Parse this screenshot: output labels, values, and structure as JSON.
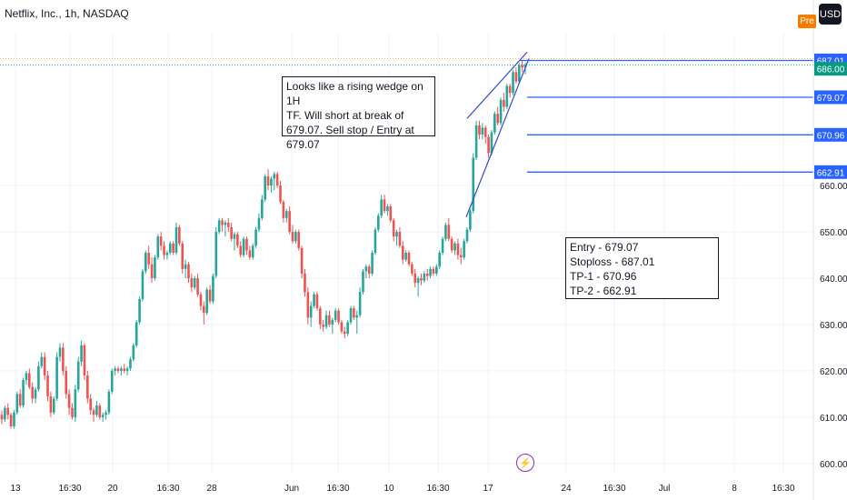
{
  "header": {
    "title": "Netflix, Inc., 1h, NASDAQ",
    "usd_label": "USD",
    "pre_label": "Pre"
  },
  "notes": {
    "wedge": "Looks like a rising wedge on 1H\nTF. Will short at break of\n679.07. Sell stop / Entry at\n679.07",
    "plan": "Entry - 679.07\nStoploss - 687.01\nTP-1 - 670.96\nTP-2 - 662.91"
  },
  "colors": {
    "up": "#26a69a",
    "down": "#ef5350",
    "level": "#2962ff",
    "line": "#2f4bd6",
    "price_tag": "#089981"
  },
  "chart_data": {
    "type": "candlestick",
    "title": "Netflix, Inc., 1h, NASDAQ",
    "ylim": [
      598,
      693
    ],
    "y_ticks": [
      600,
      610,
      620,
      630,
      640,
      650,
      660
    ],
    "x_tick_labels": [
      "13",
      "16:30",
      "20",
      "16:30",
      "28",
      "Jun",
      "16:30",
      "10",
      "16:30",
      "17",
      "24",
      "16:30",
      "Jul",
      "8",
      "16:30"
    ],
    "candles": [
      [
        610.5,
        611.5,
        608.5,
        609.5
      ],
      [
        609.5,
        612.5,
        609.0,
        612.0
      ],
      [
        612.0,
        613.0,
        609.5,
        610.5
      ],
      [
        610.5,
        611.0,
        607.5,
        608.0
      ],
      [
        608.0,
        611.5,
        607.5,
        611.0
      ],
      [
        611.0,
        615.5,
        610.5,
        615.0
      ],
      [
        615.0,
        616.0,
        612.0,
        612.5
      ],
      [
        612.5,
        618.5,
        612.0,
        618.0
      ],
      [
        618.0,
        620.0,
        617.0,
        619.5
      ],
      [
        619.5,
        620.5,
        616.0,
        616.5
      ],
      [
        616.5,
        617.5,
        613.0,
        614.0
      ],
      [
        614.0,
        616.5,
        613.0,
        616.0
      ],
      [
        616.0,
        622.0,
        615.5,
        621.0
      ],
      [
        621.0,
        624.0,
        620.5,
        623.0
      ],
      [
        623.0,
        624.0,
        618.0,
        619.0
      ],
      [
        619.0,
        620.0,
        613.5,
        614.5
      ],
      [
        614.5,
        615.5,
        610.0,
        611.0
      ],
      [
        611.0,
        614.5,
        610.5,
        614.0
      ],
      [
        614.0,
        624.0,
        613.5,
        623.0
      ],
      [
        623.0,
        626.0,
        622.0,
        625.0
      ],
      [
        625.0,
        626.0,
        619.0,
        620.0
      ],
      [
        620.0,
        621.0,
        614.0,
        615.0
      ],
      [
        615.0,
        616.0,
        610.5,
        612.0
      ],
      [
        612.0,
        613.0,
        609.5,
        610.0
      ],
      [
        610.0,
        617.0,
        609.0,
        616.0
      ],
      [
        616.0,
        623.0,
        615.5,
        622.0
      ],
      [
        622.0,
        626.5,
        621.0,
        625.5
      ],
      [
        625.5,
        626.0,
        618.0,
        619.0
      ],
      [
        619.0,
        620.0,
        613.0,
        614.0
      ],
      [
        614.0,
        615.0,
        610.5,
        611.5
      ],
      [
        611.5,
        612.0,
        609.0,
        610.5
      ],
      [
        610.5,
        613.5,
        610.0,
        612.5
      ],
      [
        612.5,
        613.0,
        609.5,
        610.0
      ],
      [
        610.0,
        611.0,
        609.0,
        610.5
      ],
      [
        610.5,
        611.5,
        609.5,
        611.0
      ],
      [
        611.0,
        616.0,
        610.5,
        615.5
      ],
      [
        615.5,
        620.5,
        615.0,
        620.0
      ],
      [
        620.0,
        621.0,
        619.0,
        620.5
      ],
      [
        620.5,
        621.0,
        619.5,
        620.0
      ],
      [
        620.0,
        621.0,
        619.0,
        620.5
      ],
      [
        620.5,
        621.5,
        619.5,
        620.0
      ],
      [
        620.0,
        621.0,
        619.0,
        620.5
      ],
      [
        620.5,
        623.0,
        620.0,
        622.5
      ],
      [
        622.5,
        626.0,
        622.0,
        625.5
      ],
      [
        625.5,
        631.0,
        625.0,
        630.5
      ],
      [
        630.5,
        636.0,
        630.0,
        635.5
      ],
      [
        635.5,
        642.0,
        635.0,
        641.5
      ],
      [
        641.5,
        646.0,
        641.0,
        645.5
      ],
      [
        645.5,
        647.0,
        642.0,
        643.0
      ],
      [
        643.0,
        644.5,
        639.0,
        640.0
      ],
      [
        640.0,
        645.0,
        639.5,
        644.5
      ],
      [
        644.5,
        649.5,
        644.0,
        649.0
      ],
      [
        649.0,
        650.0,
        646.0,
        647.0
      ],
      [
        647.0,
        648.0,
        644.0,
        645.0
      ],
      [
        645.0,
        646.0,
        644.0,
        645.5
      ],
      [
        645.5,
        648.0,
        645.0,
        647.5
      ],
      [
        647.5,
        648.0,
        645.0,
        645.5
      ],
      [
        645.5,
        652.0,
        645.0,
        651.0
      ],
      [
        651.0,
        651.5,
        647.0,
        647.5
      ],
      [
        647.5,
        648.0,
        641.0,
        642.0
      ],
      [
        642.0,
        644.0,
        640.0,
        643.0
      ],
      [
        643.0,
        643.5,
        639.0,
        640.0
      ],
      [
        640.0,
        641.0,
        637.0,
        638.0
      ],
      [
        638.0,
        640.5,
        637.5,
        640.0
      ],
      [
        640.0,
        641.0,
        636.0,
        636.5
      ],
      [
        636.5,
        637.0,
        633.0,
        634.0
      ],
      [
        634.0,
        635.0,
        630.0,
        632.5
      ],
      [
        632.5,
        638.0,
        632.0,
        637.5
      ],
      [
        637.5,
        638.5,
        634.5,
        635.0
      ],
      [
        635.0,
        641.0,
        634.5,
        640.5
      ],
      [
        640.5,
        651.0,
        640.0,
        650.0
      ],
      [
        650.0,
        653.0,
        649.5,
        652.5
      ],
      [
        652.5,
        653.0,
        650.0,
        651.5
      ],
      [
        651.5,
        652.5,
        649.0,
        652.0
      ],
      [
        652.0,
        653.0,
        650.0,
        651.0
      ],
      [
        651.0,
        652.0,
        648.0,
        648.5
      ],
      [
        648.5,
        650.0,
        646.0,
        649.5
      ],
      [
        649.5,
        650.0,
        646.5,
        647.0
      ],
      [
        647.0,
        648.0,
        644.5,
        645.0
      ],
      [
        645.0,
        649.0,
        644.5,
        648.5
      ],
      [
        648.5,
        649.0,
        645.0,
        646.0
      ],
      [
        646.0,
        647.0,
        644.0,
        644.5
      ],
      [
        644.5,
        647.5,
        644.0,
        647.0
      ],
      [
        647.0,
        651.0,
        646.5,
        650.5
      ],
      [
        650.5,
        654.0,
        650.0,
        653.0
      ],
      [
        653.0,
        658.0,
        652.5,
        657.0
      ],
      [
        657.0,
        662.5,
        656.5,
        662.0
      ],
      [
        662.0,
        663.5,
        659.0,
        660.0
      ],
      [
        660.0,
        662.0,
        658.5,
        661.5
      ],
      [
        661.5,
        663.0,
        659.0,
        662.5
      ],
      [
        662.5,
        663.0,
        659.5,
        660.0
      ],
      [
        660.0,
        661.0,
        656.0,
        656.5
      ],
      [
        656.5,
        657.0,
        652.0,
        653.0
      ],
      [
        653.0,
        655.0,
        652.0,
        654.5
      ],
      [
        654.5,
        655.5,
        649.5,
        650.0
      ],
      [
        650.0,
        651.5,
        647.5,
        648.0
      ],
      [
        648.0,
        650.5,
        647.5,
        650.0
      ],
      [
        650.0,
        650.5,
        646.0,
        646.5
      ],
      [
        646.5,
        647.0,
        640.0,
        641.0
      ],
      [
        641.0,
        642.0,
        636.0,
        637.0
      ],
      [
        637.0,
        638.0,
        630.0,
        631.5
      ],
      [
        631.5,
        635.0,
        629.5,
        634.0
      ],
      [
        634.0,
        637.0,
        633.5,
        636.5
      ],
      [
        636.5,
        637.0,
        633.0,
        633.5
      ],
      [
        633.5,
        634.0,
        629.0,
        630.0
      ],
      [
        630.0,
        631.0,
        628.5,
        629.5
      ],
      [
        629.5,
        633.0,
        629.0,
        632.0
      ],
      [
        632.0,
        633.0,
        629.5,
        630.0
      ],
      [
        630.0,
        631.5,
        628.0,
        631.0
      ],
      [
        631.0,
        633.5,
        630.5,
        633.0
      ],
      [
        633.0,
        633.5,
        630.0,
        630.5
      ],
      [
        630.5,
        631.0,
        628.0,
        628.5
      ],
      [
        628.5,
        629.5,
        627.0,
        628.0
      ],
      [
        628.0,
        631.0,
        627.5,
        630.5
      ],
      [
        630.5,
        634.0,
        630.0,
        633.5
      ],
      [
        633.5,
        634.0,
        631.0,
        631.5
      ],
      [
        631.5,
        633.0,
        628.0,
        632.0
      ],
      [
        632.0,
        638.0,
        631.5,
        637.0
      ],
      [
        637.0,
        642.0,
        636.5,
        641.5
      ],
      [
        641.5,
        643.0,
        640.0,
        642.5
      ],
      [
        642.5,
        643.0,
        640.0,
        641.0
      ],
      [
        641.0,
        646.0,
        640.5,
        645.5
      ],
      [
        645.5,
        651.0,
        645.0,
        650.5
      ],
      [
        650.5,
        654.0,
        650.0,
        653.5
      ],
      [
        653.5,
        658.0,
        653.0,
        657.0
      ],
      [
        657.0,
        658.0,
        654.0,
        654.5
      ],
      [
        654.5,
        656.0,
        653.5,
        655.5
      ],
      [
        655.5,
        656.0,
        652.0,
        652.5
      ],
      [
        652.5,
        653.0,
        648.0,
        649.0
      ],
      [
        649.0,
        650.5,
        647.0,
        650.0
      ],
      [
        650.0,
        651.0,
        646.5,
        647.0
      ],
      [
        647.0,
        648.0,
        643.0,
        644.0
      ],
      [
        644.0,
        646.0,
        643.5,
        645.5
      ],
      [
        645.5,
        646.0,
        642.5,
        643.0
      ],
      [
        643.0,
        643.5,
        640.5,
        641.0
      ],
      [
        641.0,
        642.0,
        638.0,
        639.0
      ],
      [
        639.0,
        640.5,
        636.0,
        640.0
      ],
      [
        640.0,
        641.0,
        638.5,
        639.5
      ],
      [
        639.5,
        641.5,
        639.0,
        641.0
      ],
      [
        641.0,
        642.0,
        639.5,
        640.5
      ],
      [
        640.5,
        642.5,
        640.0,
        642.0
      ],
      [
        642.0,
        642.5,
        640.5,
        641.0
      ],
      [
        641.0,
        643.0,
        640.5,
        642.5
      ],
      [
        642.5,
        646.0,
        642.0,
        645.5
      ],
      [
        645.5,
        649.0,
        645.0,
        648.5
      ],
      [
        648.5,
        652.0,
        648.0,
        651.5
      ],
      [
        651.5,
        653.0,
        648.0,
        648.5
      ],
      [
        648.5,
        649.0,
        645.5,
        646.0
      ],
      [
        646.0,
        648.0,
        645.0,
        647.5
      ],
      [
        647.5,
        648.5,
        644.0,
        645.0
      ],
      [
        645.0,
        646.5,
        643.0,
        644.5
      ],
      [
        644.5,
        648.5,
        644.0,
        648.0
      ],
      [
        648.0,
        651.0,
        647.5,
        650.5
      ],
      [
        650.5,
        655.0,
        650.0,
        654.5
      ],
      [
        654.5,
        667.0,
        654.0,
        666.0
      ],
      [
        666.0,
        674.0,
        665.5,
        673.0
      ],
      [
        673.0,
        674.0,
        670.0,
        671.0
      ],
      [
        671.0,
        673.5,
        670.0,
        672.5
      ],
      [
        672.5,
        673.0,
        669.0,
        670.5
      ],
      [
        670.5,
        671.0,
        666.0,
        667.0
      ],
      [
        667.0,
        672.0,
        666.5,
        671.5
      ],
      [
        671.5,
        676.0,
        671.0,
        675.5
      ],
      [
        675.5,
        677.0,
        673.0,
        673.5
      ],
      [
        673.5,
        679.0,
        673.0,
        678.5
      ],
      [
        678.5,
        680.0,
        676.0,
        677.0
      ],
      [
        677.0,
        682.0,
        676.5,
        681.5
      ],
      [
        681.5,
        682.0,
        679.0,
        680.0
      ],
      [
        680.0,
        685.0,
        679.5,
        684.5
      ],
      [
        684.5,
        685.5,
        682.0,
        682.5
      ],
      [
        682.5,
        686.5,
        682.0,
        686.0
      ],
      [
        686.0,
        687.0,
        684.5,
        685.5
      ],
      [
        685.5,
        686.5,
        684.0,
        686.0
      ]
    ],
    "levels": [
      {
        "price": 687.01,
        "label": "687.01",
        "note": "Stoploss"
      },
      {
        "price": 679.07,
        "label": "679.07",
        "note": "Entry"
      },
      {
        "price": 670.96,
        "label": "670.96",
        "note": "TP-1"
      },
      {
        "price": 662.91,
        "label": "662.91",
        "note": "TP-2"
      }
    ],
    "last_price": {
      "price": 686.0,
      "label": "686.00"
    }
  }
}
